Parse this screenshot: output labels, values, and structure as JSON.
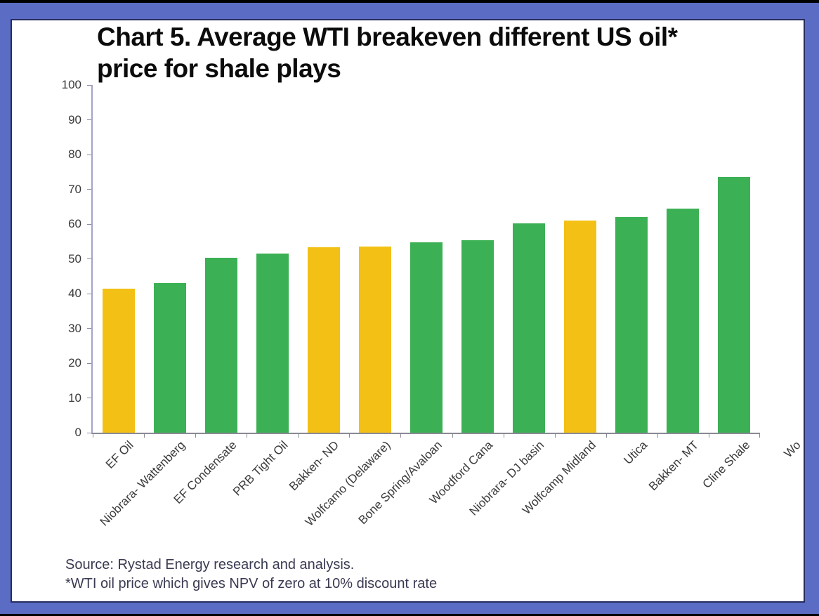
{
  "frame": {
    "border_color": "#5a6cc4",
    "inner_border_color": "#272c60",
    "background": "#ffffff"
  },
  "title_lines": [
    "Chart 5. Average WTI breakeven different US oil*",
    "price for shale plays"
  ],
  "chart_data": {
    "type": "bar",
    "title": "Chart 5. Average WTI breakeven different US oil* price for shale plays",
    "xlabel": "",
    "ylabel": "",
    "ylim": [
      0,
      100
    ],
    "yticks": [
      0,
      10,
      20,
      30,
      40,
      50,
      60,
      70,
      80,
      90,
      100
    ],
    "grid": false,
    "legend": "none",
    "categories": [
      "EF Oil",
      "Niobrara- Wattenberg",
      "EF Condensate",
      "PRB Tight Oil",
      "Bakken- ND",
      "Wolfcamo (Delaware)",
      "Bone Spring/Avaloan",
      "Woodford Cana",
      "Niobrara- DJ basin",
      "Wolfcamp Midland",
      "Utica",
      "Bakken- MT",
      "Cline Shale",
      "Wo"
    ],
    "values": [
      41.5,
      43,
      50.3,
      51.5,
      53.3,
      53.6,
      54.8,
      55.4,
      60.3,
      61,
      62,
      64.5,
      73.5,
      null
    ],
    "colors": [
      "yellow",
      "green",
      "green",
      "green",
      "yellow",
      "yellow",
      "green",
      "green",
      "green",
      "yellow",
      "green",
      "green",
      "green",
      "green"
    ],
    "color_map": {
      "green": "#3cb054",
      "yellow": "#f3c116"
    },
    "last_category_clipped": true
  },
  "footer": {
    "source": "Source: Rystad Energy research and analysis.",
    "footnote": "*WTI oil price which gives NPV of zero at 10% discount rate"
  }
}
